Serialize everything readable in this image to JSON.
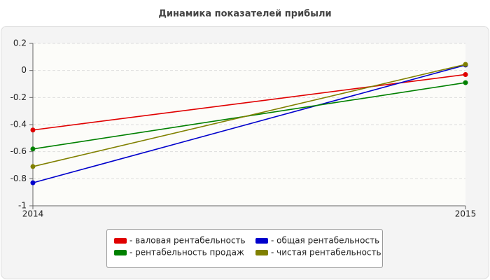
{
  "chart_data": {
    "type": "line",
    "title": "Динамика показателей прибыли",
    "categories": [
      "2014",
      "2015"
    ],
    "series": [
      {
        "name": "- валовая рентабельность",
        "color": "#e00000",
        "values": [
          -0.44,
          -0.03
        ]
      },
      {
        "name": "- общая рентабельность",
        "color": "#0000cc",
        "values": [
          -0.83,
          0.04
        ]
      },
      {
        "name": "- рентабельность продаж",
        "color": "#008000",
        "values": [
          -0.58,
          -0.09
        ]
      },
      {
        "name": "- чистая рентабельность",
        "color": "#808000",
        "values": [
          -0.71,
          0.045
        ]
      }
    ],
    "ylim": [
      -1,
      0.2
    ],
    "yticks": [
      0.2,
      0,
      -0.2,
      -0.4,
      -0.6,
      -0.8,
      -1
    ],
    "grid": true
  }
}
